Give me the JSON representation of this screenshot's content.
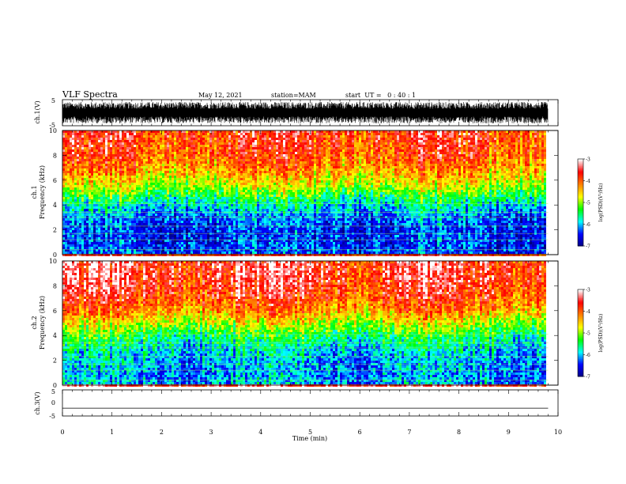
{
  "header": {
    "title": "VLF Spectra",
    "date": "May 12, 2021",
    "station": "station=MAM",
    "start": "start  UT =   0 : 40 : 1"
  },
  "chart_data": [
    {
      "type": "line",
      "panel": "ch1-waveform",
      "ylabel": "ch.1(V)",
      "ylim": [
        -5,
        5
      ],
      "yticks": [
        "5",
        "-5"
      ],
      "description_of_values": "dense noisy waveform spanning roughly -4 to 4 V over 0–9.8 min",
      "x_range": [
        0,
        9.8
      ]
    },
    {
      "type": "heatmap",
      "panel": "ch1-spectrogram",
      "ylabel_top": "ch.1",
      "ylabel": "Frequency (kHz)",
      "ylim": [
        0,
        10
      ],
      "yticks": [
        "0",
        "2",
        "4",
        "6",
        "8",
        "10"
      ],
      "x_range": [
        0,
        9.8
      ],
      "colorbar": {
        "label": "log(PSD)(V²/Hz)",
        "range": [
          -7,
          -3
        ],
        "ticks": [
          "-3",
          "-4",
          "-5",
          "-6",
          "-7"
        ]
      },
      "profile_log_psd_by_freq_khz": [
        [
          0,
          -6.3
        ],
        [
          1,
          -6.4
        ],
        [
          2,
          -6.4
        ],
        [
          3,
          -6.2
        ],
        [
          4,
          -5.8
        ],
        [
          5,
          -5.2
        ],
        [
          6,
          -4.6
        ],
        [
          7,
          -4.2
        ],
        [
          8,
          -3.9
        ],
        [
          9,
          -3.8
        ],
        [
          10,
          -3.7
        ]
      ]
    },
    {
      "type": "heatmap",
      "panel": "ch2-spectrogram",
      "ylabel_top": "ch.2",
      "ylabel": "Frequency (kHz)",
      "ylim": [
        0,
        10
      ],
      "yticks": [
        "0",
        "2",
        "4",
        "6",
        "8",
        "10"
      ],
      "x_range": [
        0,
        9.8
      ],
      "colorbar": {
        "label": "log(PSD)(V²/Hz)",
        "range": [
          -7,
          -3
        ],
        "ticks": [
          "-3",
          "-4",
          "-5",
          "-6",
          "-7"
        ]
      },
      "profile_log_psd_by_freq_khz": [
        [
          0,
          -6.0
        ],
        [
          1,
          -6.1
        ],
        [
          2,
          -6.0
        ],
        [
          3,
          -5.8
        ],
        [
          4,
          -5.4
        ],
        [
          5,
          -4.8
        ],
        [
          6,
          -4.2
        ],
        [
          7,
          -3.8
        ],
        [
          8,
          -3.6
        ],
        [
          9,
          -3.5
        ],
        [
          10,
          -3.5
        ]
      ]
    },
    {
      "type": "line",
      "panel": "ch3-waveform",
      "ylabel": "ch.3(V)",
      "ylim": [
        -5,
        5
      ],
      "yticks": [
        "5",
        "0",
        "-5"
      ],
      "x": [
        0,
        9.8
      ],
      "y": [
        -2,
        -2
      ]
    }
  ],
  "xaxis": {
    "label": "Time (min)",
    "ticks": [
      "0",
      "1",
      "2",
      "3",
      "4",
      "5",
      "6",
      "7",
      "8",
      "9",
      "10"
    ],
    "range": [
      0,
      10
    ]
  },
  "colors": {
    "scale": [
      "#000080",
      "#0000ff",
      "#00ffff",
      "#00ff00",
      "#ffff00",
      "#ff8000",
      "#ff0000",
      "#ffffff"
    ]
  }
}
